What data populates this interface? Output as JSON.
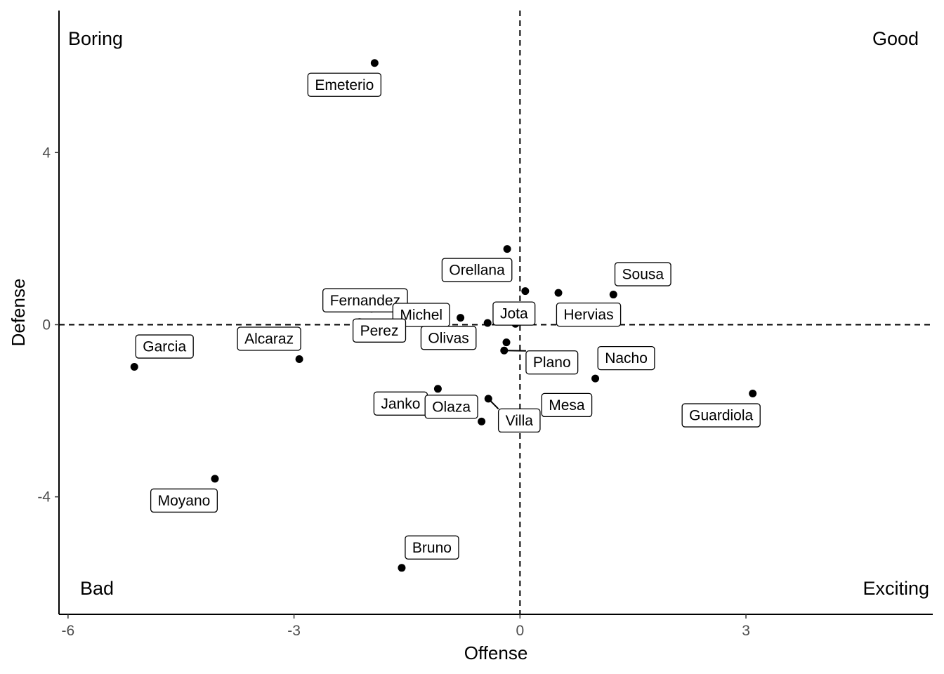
{
  "chart_data": {
    "type": "scatter",
    "xlabel": "Offense",
    "ylabel": "Defense",
    "xlim": [
      -6.12,
      5.48
    ],
    "ylim": [
      7.3,
      -6.73
    ],
    "y_reversed": true,
    "x_ticks": [
      -6,
      -3,
      0,
      3
    ],
    "y_ticks": [
      -4,
      0,
      4
    ],
    "reference_lines": {
      "x": 0,
      "y": 0,
      "style": "dashed"
    },
    "corner_labels": {
      "top_left": "Boring",
      "top_right": "Good",
      "bottom_left": "Bad",
      "bottom_right": "Exciting"
    },
    "points": [
      {
        "label": "Bruno",
        "x": -1.57,
        "y": -5.65
      },
      {
        "label": "Moyano",
        "x": -4.05,
        "y": -3.58
      },
      {
        "label": "Garcia",
        "x": -5.12,
        "y": -0.98
      },
      {
        "label": "Alcaraz",
        "x": -2.93,
        "y": -0.8
      },
      {
        "label": "Fernandez",
        "x": -2.13,
        "y": 0.06
      },
      {
        "label": "Janko",
        "x": -1.09,
        "y": -1.49
      },
      {
        "label": "Olaza",
        "x": -0.51,
        "y": -2.25
      },
      {
        "label": "Villa",
        "x": -0.42,
        "y": -1.72
      },
      {
        "label": "Mesa",
        "x": 0.22,
        "y": -2.34
      },
      {
        "label": "Nacho",
        "x": 1.0,
        "y": -1.25
      },
      {
        "label": "Guardiola",
        "x": 3.09,
        "y": -1.6
      },
      {
        "label": "Plano",
        "x": -0.21,
        "y": -0.6
      },
      {
        "label": "Michel",
        "x": -1.88,
        "y": -0.05
      },
      {
        "label": "Perez",
        "x": -1.97,
        "y": 0.37
      },
      {
        "label": "Olivas",
        "x": -1.34,
        "y": 0.28
      },
      {
        "label": "Sousa",
        "x": 1.24,
        "y": 0.7
      },
      {
        "label": "Hervias",
        "x": 0.51,
        "y": 0.74
      },
      {
        "label": "Jota",
        "x": 0.07,
        "y": 0.78
      },
      {
        "label": "Orellana",
        "x": -0.17,
        "y": 1.76
      },
      {
        "label": "Emeterio",
        "x": -1.93,
        "y": 6.08
      },
      {
        "label": "",
        "x": -0.64,
        "y": -0.31
      },
      {
        "label": "",
        "x": -0.18,
        "y": -0.41
      },
      {
        "label": "",
        "x": -0.43,
        "y": 0.04
      },
      {
        "label": "",
        "x": -0.06,
        "y": 0.02
      },
      {
        "label": "",
        "x": -1.43,
        "y": 0.2
      },
      {
        "label": "",
        "x": -0.79,
        "y": 0.16
      },
      {
        "label": "",
        "x": -0.18,
        "y": 0.19
      },
      {
        "label": "",
        "x": -0.01,
        "y": 0.4
      }
    ]
  }
}
